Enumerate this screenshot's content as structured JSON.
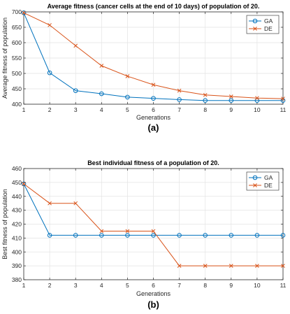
{
  "chart_data": [
    {
      "type": "line",
      "panel_label": "(a)",
      "title": "Average fitness (cancer cells at the end of 10 days) of population of 20.",
      "xlabel": "Generations",
      "ylabel": "Average fitness of population",
      "xlim": [
        1,
        11
      ],
      "ylim": [
        400,
        700
      ],
      "xticks": [
        1,
        2,
        3,
        4,
        5,
        6,
        7,
        8,
        9,
        10,
        11
      ],
      "yticks": [
        400,
        450,
        500,
        550,
        600,
        650,
        700
      ],
      "grid": true,
      "legend_position": "top-right",
      "x": [
        1,
        2,
        3,
        4,
        5,
        6,
        7,
        8,
        9,
        10,
        11
      ],
      "series": [
        {
          "name": "GA",
          "marker": "circle",
          "color": "#0072BD",
          "values": [
            697,
            502,
            444,
            434,
            423,
            419,
            415,
            412,
            412,
            412,
            412
          ]
        },
        {
          "name": "DE",
          "marker": "x",
          "color": "#D95319",
          "values": [
            697,
            657,
            590,
            525,
            491,
            463,
            444,
            430,
            425,
            420,
            418
          ]
        }
      ]
    },
    {
      "type": "line",
      "panel_label": "(b)",
      "title": "Best individual fitness of a population of 20.",
      "xlabel": "Generations",
      "ylabel": "Best fitness of population",
      "xlim": [
        1,
        11
      ],
      "ylim": [
        380,
        460
      ],
      "xticks": [
        1,
        2,
        3,
        4,
        5,
        6,
        7,
        8,
        9,
        10,
        11
      ],
      "yticks": [
        380,
        390,
        400,
        410,
        420,
        430,
        440,
        450,
        460
      ],
      "grid": true,
      "legend_position": "top-right",
      "x": [
        1,
        2,
        3,
        4,
        5,
        6,
        7,
        8,
        9,
        10,
        11
      ],
      "series": [
        {
          "name": "GA",
          "marker": "circle",
          "color": "#0072BD",
          "values": [
            449,
            412,
            412,
            412,
            412,
            412,
            412,
            412,
            412,
            412,
            412
          ]
        },
        {
          "name": "DE",
          "marker": "x",
          "color": "#D95319",
          "values": [
            449,
            435,
            435,
            415,
            415,
            415,
            390,
            390,
            390,
            390,
            390
          ]
        }
      ]
    }
  ]
}
